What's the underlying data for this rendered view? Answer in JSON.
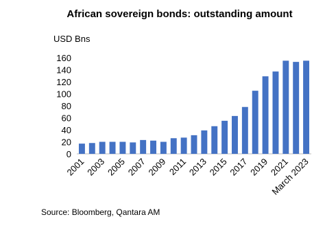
{
  "chart_data": {
    "type": "bar",
    "title": "African sovereign bonds: outstanding amount",
    "y_label": "USD Bns",
    "source": "Source: Bloomberg, Qantara AM",
    "categories": [
      "2001",
      null,
      "2003",
      null,
      "2005",
      null,
      "2007",
      null,
      "2009",
      null,
      "2011",
      null,
      "2013",
      null,
      "2015",
      null,
      "2017",
      null,
      "2019",
      null,
      "2021",
      null,
      "March 2023"
    ],
    "values": [
      17,
      18,
      20,
      20,
      20,
      19,
      23,
      22,
      20,
      26,
      27,
      31,
      39,
      46,
      55,
      63,
      78,
      105,
      129,
      137,
      155,
      153,
      155
    ],
    "color": "#4472c4",
    "ylim": [
      0,
      160
    ],
    "yticks": [
      0,
      20,
      40,
      60,
      80,
      100,
      120,
      140,
      160
    ],
    "grid": false
  }
}
